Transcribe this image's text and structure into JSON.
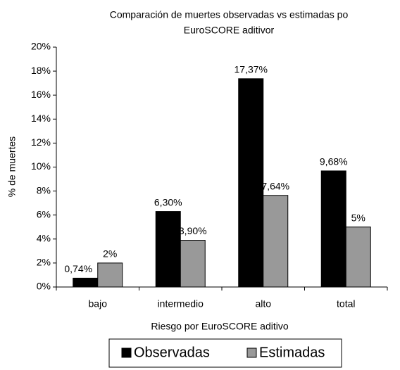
{
  "chart_data": {
    "type": "bar",
    "title": [
      "Comparación de muertes observadas vs estimadas po",
      "EuroSCORE aditivor"
    ],
    "x_label": "Riesgo por EuroSCORE aditivo",
    "y_label": "% de muertes",
    "categories": [
      "bajo",
      "intermedio",
      "alto",
      "total"
    ],
    "series": [
      {
        "name": "Observadas",
        "color": "#000000",
        "values": [
          0.74,
          6.3,
          17.37,
          9.68
        ],
        "value_labels": [
          "0,74%",
          "6,30%",
          "17,37%",
          "9,68%"
        ]
      },
      {
        "name": "Estimadas",
        "color": "#999999",
        "values": [
          2,
          3.9,
          7.64,
          5
        ],
        "value_labels": [
          "2%",
          "3,90%",
          "7,64%",
          "5%"
        ]
      }
    ],
    "ylim": [
      0,
      20
    ],
    "yticks": [
      {
        "value": 0,
        "label": "0%"
      },
      {
        "value": 2,
        "label": "2%"
      },
      {
        "value": 4,
        "label": "4%"
      },
      {
        "value": 6,
        "label": "6%"
      },
      {
        "value": 8,
        "label": "8%"
      },
      {
        "value": 10,
        "label": "10%"
      },
      {
        "value": 12,
        "label": "12%"
      },
      {
        "value": 14,
        "label": "14%"
      },
      {
        "value": 16,
        "label": "16%"
      },
      {
        "value": 18,
        "label": "18%"
      },
      {
        "value": 20,
        "label": "20%"
      }
    ],
    "grid": false,
    "legend": "bottom"
  }
}
